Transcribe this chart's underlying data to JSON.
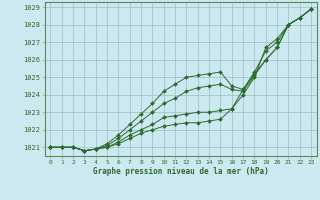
{
  "xlabel": "Graphe pression niveau de la mer (hPa)",
  "x": [
    0,
    1,
    2,
    3,
    4,
    5,
    6,
    7,
    8,
    9,
    10,
    11,
    12,
    13,
    14,
    15,
    16,
    17,
    18,
    19,
    20,
    21,
    22,
    23
  ],
  "series": [
    [
      1021.0,
      1021.0,
      1021.0,
      1020.8,
      1020.9,
      1021.0,
      1021.2,
      1021.5,
      1021.8,
      1022.0,
      1022.2,
      1022.3,
      1022.4,
      1022.4,
      1022.5,
      1022.6,
      1023.2,
      1024.0,
      1025.0,
      1026.7,
      1027.2,
      1028.0,
      1028.4,
      1028.9
    ],
    [
      1021.0,
      1021.0,
      1021.0,
      1020.8,
      1020.9,
      1021.0,
      1021.3,
      1021.7,
      1022.0,
      1022.3,
      1022.7,
      1022.8,
      1022.9,
      1023.0,
      1023.0,
      1023.1,
      1023.2,
      1024.3,
      1025.3,
      1026.5,
      1027.0,
      1028.0,
      1028.4,
      1028.9
    ],
    [
      1021.0,
      1021.0,
      1021.0,
      1020.8,
      1020.9,
      1021.1,
      1021.5,
      1022.0,
      1022.5,
      1023.0,
      1023.5,
      1023.8,
      1024.2,
      1024.4,
      1024.5,
      1024.6,
      1024.3,
      1024.2,
      1025.1,
      1026.0,
      1026.7,
      1028.0,
      1028.4,
      1028.9
    ],
    [
      1021.0,
      1021.0,
      1021.0,
      1020.8,
      1020.9,
      1021.2,
      1021.7,
      1022.3,
      1022.9,
      1023.5,
      1024.2,
      1024.6,
      1025.0,
      1025.1,
      1025.2,
      1025.3,
      1024.5,
      1024.3,
      1025.2,
      1026.0,
      1026.7,
      1028.0,
      1028.4,
      1028.9
    ]
  ],
  "line_color": "#2d6a2d",
  "marker_color": "#2d6a2d",
  "bg_color": "#cce8f0",
  "grid_color": "#9bbfbf",
  "tick_label_color": "#2d6a2d",
  "xlabel_color": "#2d6a2d",
  "ylim": [
    1020.5,
    1029.3
  ],
  "yticks": [
    1021,
    1022,
    1023,
    1024,
    1025,
    1026,
    1027,
    1028,
    1029
  ],
  "xticks": [
    0,
    1,
    2,
    3,
    4,
    5,
    6,
    7,
    8,
    9,
    10,
    11,
    12,
    13,
    14,
    15,
    16,
    17,
    18,
    19,
    20,
    21,
    22,
    23
  ]
}
